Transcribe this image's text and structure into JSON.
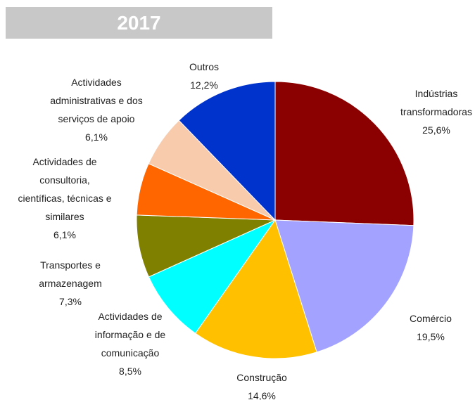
{
  "chart_data": {
    "type": "pie",
    "title": "2017",
    "categories": [
      "Indústrias\ntransformadoras",
      "Comércio",
      "Construção",
      "Actividades de\ninformação e de\ncomunicação",
      "Transportes e\narmazenagem",
      "Actividades de\nconsultoria,\ncientíficas, técnicas e\nsimilares",
      "Actividades\nadministrativas e dos\nserviços de apoio",
      "Outros"
    ],
    "values": [
      25.6,
      19.5,
      14.6,
      8.5,
      7.3,
      6.1,
      6.1,
      12.2
    ],
    "value_labels": [
      "25,6%",
      "19,5%",
      "14,6%",
      "8,5%",
      "7,3%",
      "6,1%",
      "6,1%",
      "12,2%"
    ],
    "colors": [
      "#8b0000",
      "#a3a3ff",
      "#ffc000",
      "#00ffff",
      "#808000",
      "#ff6600",
      "#f8cbad",
      "#0033cc"
    ]
  }
}
